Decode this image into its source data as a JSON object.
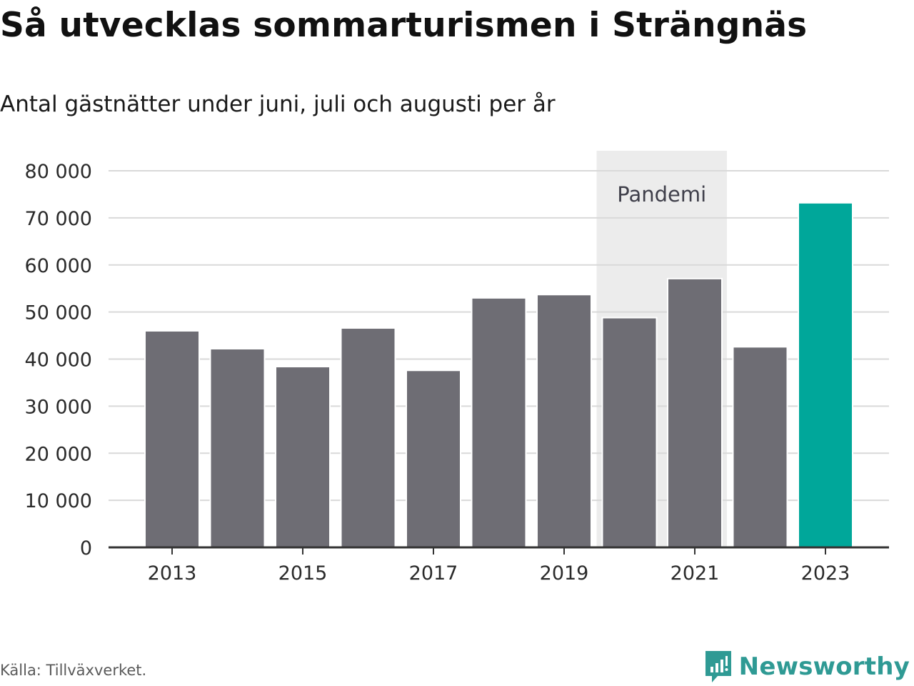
{
  "title": "Så utvecklas sommarturismen i Strängnäs",
  "subtitle": "Antal gästnätter under juni, juli och augusti per år",
  "source": "Källa: Tillväxverket.",
  "brand": {
    "name": "Newsworthy",
    "icon": "newsworthy-logo-icon"
  },
  "colors": {
    "bar": "#6e6d74",
    "highlight": "#00a79a",
    "band": "#ececec",
    "grid": "#d9d9d9",
    "axis": "#333333",
    "brand": "#2f9a94"
  },
  "chart_data": {
    "type": "bar",
    "categories": [
      "2013",
      "2014",
      "2015",
      "2016",
      "2017",
      "2018",
      "2019",
      "2020",
      "2021",
      "2022",
      "2023"
    ],
    "values": [
      46000,
      42200,
      38400,
      46600,
      37600,
      53000,
      53700,
      48800,
      57100,
      42600,
      73200
    ],
    "highlight": [
      "2023"
    ],
    "x_tick_labels": [
      "2013",
      "2015",
      "2017",
      "2019",
      "2021",
      "2023"
    ],
    "y_ticks": [
      0,
      10000,
      20000,
      30000,
      40000,
      50000,
      60000,
      70000,
      80000
    ],
    "y_tick_labels": [
      "0",
      "10 000",
      "20 000",
      "30 000",
      "40 000",
      "50 000",
      "60 000",
      "70 000",
      "80 000"
    ],
    "ylim": [
      0,
      84000
    ],
    "grid": true,
    "annotation": {
      "label": "Pandemi",
      "from": "2020",
      "to": "2021"
    }
  }
}
